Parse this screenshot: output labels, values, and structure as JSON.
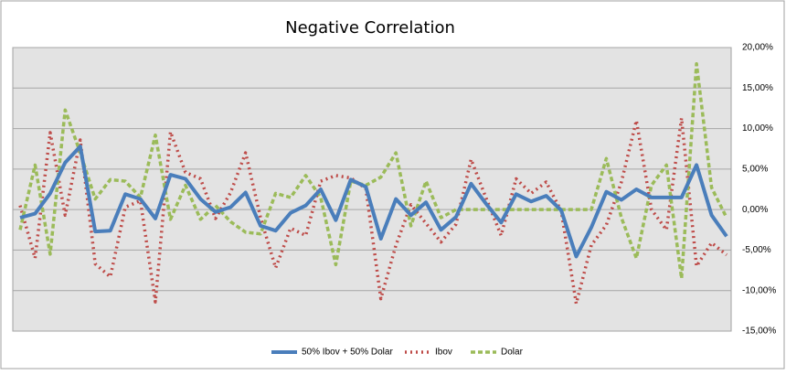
{
  "chart_data": {
    "type": "line",
    "title": "Negative Correlation",
    "ylim": [
      -15,
      20
    ],
    "yticks": [
      {
        "value": -15,
        "label": "-15,00%"
      },
      {
        "value": -10,
        "label": "-10,00%"
      },
      {
        "value": -5,
        "label": "-5,00%"
      },
      {
        "value": 0,
        "label": "0,00%"
      },
      {
        "value": 5,
        "label": "5,00%"
      },
      {
        "value": 10,
        "label": "10,00%"
      },
      {
        "value": 15,
        "label": "15,00%"
      },
      {
        "value": 20,
        "label": "20,00%"
      }
    ],
    "grid": true,
    "legend": "bottom",
    "series": [
      {
        "name": "50% Ibov + 50% Dolar",
        "color": "#4a7ebb",
        "style": "solid",
        "values": [
          -1.0,
          -0.5,
          2.0,
          5.8,
          7.8,
          -2.7,
          -2.6,
          1.9,
          1.3,
          -1.1,
          4.3,
          3.8,
          1.3,
          -0.3,
          0.3,
          2.1,
          -2.0,
          -2.6,
          -0.4,
          0.5,
          2.5,
          -1.3,
          3.7,
          2.8,
          -3.6,
          1.3,
          -0.7,
          0.9,
          -2.5,
          -0.9,
          3.2,
          0.7,
          -1.6,
          1.9,
          1.0,
          1.7,
          -0.1,
          -5.8,
          -2.2,
          2.2,
          1.2,
          2.5,
          1.5,
          1.5,
          1.5,
          5.5,
          -0.7,
          -3.3
        ]
      },
      {
        "name": "Ibov",
        "color": "#be4b48",
        "style": "dotted",
        "values": [
          0.5,
          -6.0,
          9.5,
          -0.7,
          8.6,
          -6.7,
          -8.3,
          0.3,
          1.1,
          -11.4,
          9.6,
          4.6,
          3.8,
          -1.1,
          2.1,
          7.0,
          -1.0,
          -7.2,
          -2.3,
          -3.2,
          3.5,
          4.2,
          3.9,
          2.6,
          -11.0,
          -4.4,
          0.6,
          -1.7,
          -4.0,
          -1.8,
          6.2,
          1.4,
          -3.2,
          3.8,
          2.0,
          3.4,
          -0.2,
          -11.6,
          -4.4,
          -1.9,
          3.4,
          11.0,
          0.0,
          -2.5,
          11.3,
          -7.0,
          -4.1,
          -5.6
        ]
      },
      {
        "name": "Dolar",
        "color": "#9bbb59",
        "style": "dashed",
        "values": [
          -2.5,
          5.5,
          -5.5,
          12.3,
          7.0,
          1.3,
          3.7,
          3.5,
          1.5,
          9.2,
          -1.2,
          3.0,
          -1.2,
          0.5,
          -1.5,
          -2.8,
          -3.0,
          2.0,
          1.5,
          4.2,
          1.5,
          -6.8,
          3.5,
          3.0,
          4.0,
          7.0,
          -2.0,
          3.5,
          -1.0,
          0.0,
          0.0,
          0.0,
          0.0,
          0.0,
          0.0,
          0.0,
          0.0,
          0.0,
          0.0,
          6.3,
          -1.0,
          -6.0,
          3.0,
          5.5,
          -8.5,
          18.0,
          2.7,
          -1.0
        ]
      }
    ]
  }
}
